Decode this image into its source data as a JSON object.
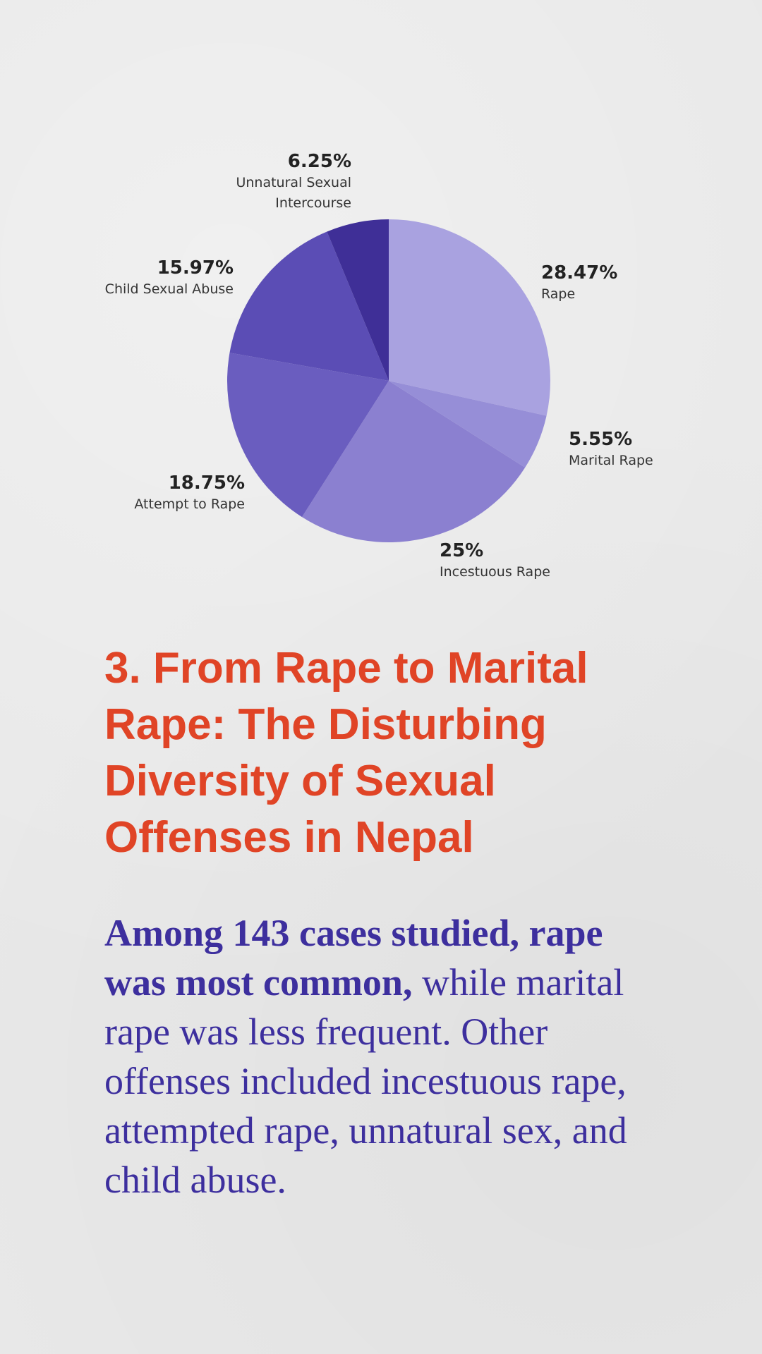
{
  "chart_data": {
    "type": "pie",
    "title": "",
    "slices": [
      {
        "label": "Rape",
        "value": 28.47,
        "value_label": "28.47%",
        "color": "#a9a2e0"
      },
      {
        "label": "Marital Rape",
        "value": 5.55,
        "value_label": "5.55%",
        "color": "#968ed7"
      },
      {
        "label": "Incestuous Rape",
        "value": 25,
        "value_label": "25%",
        "color": "#8b80d0"
      },
      {
        "label": "Attempt to Rape",
        "value": 18.75,
        "value_label": "18.75%",
        "color": "#6a5dbf"
      },
      {
        "label": "Child Sexual Abuse",
        "value": 15.97,
        "value_label": "15.97%",
        "color": "#5b4db5"
      },
      {
        "label": "Unnatural Sexual Intercourse",
        "value": 6.25,
        "value_label": "6.25%",
        "color": "#3f2f97"
      }
    ],
    "start_angle": "12 o'clock",
    "direction": "clockwise",
    "legend": "none"
  },
  "heading": "3. From Rape to Marital Rape: The Disturbing Diversity of Sexual Offenses in Nepal",
  "body": {
    "bold": "Among 143 cases studied, rape was most common,",
    "rest": " while marital rape was less frequent. Other offenses included incestuous rape, attempted rape, unnatural sex, and child abuse."
  },
  "colors": {
    "background": "#e8e8e8",
    "heading": "#e04426",
    "body": "#3d2f9e",
    "label": "#222222"
  }
}
